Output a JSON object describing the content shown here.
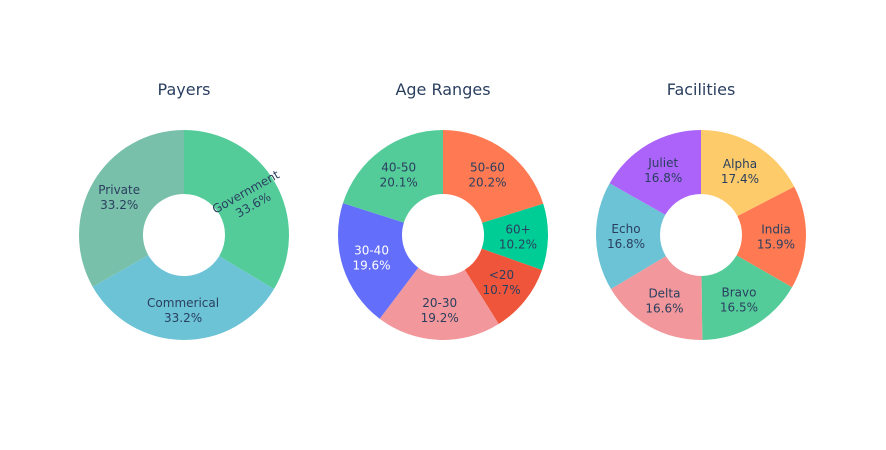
{
  "chart_data": [
    {
      "type": "pie",
      "title": "Payers",
      "hole": true,
      "slices": [
        {
          "label": "Government",
          "value": 33.6,
          "pct": "33.6%",
          "color": "#54cc9a",
          "text_color": "#2a3f5f",
          "label_style": "radial"
        },
        {
          "label": "Commerical",
          "value": 33.2,
          "pct": "33.2%",
          "color": "#6cc3d6",
          "text_color": "#2a3f5f",
          "label_style": "horizontal"
        },
        {
          "label": "Private",
          "value": 33.2,
          "pct": "33.2%",
          "color": "#79c0aa",
          "text_color": "#2a3f5f",
          "label_style": "horizontal"
        }
      ]
    },
    {
      "type": "pie",
      "title": "Age Ranges",
      "hole": true,
      "slices": [
        {
          "label": "50-60",
          "value": 20.2,
          "pct": "20.2%",
          "color": "#ff7a52",
          "text_color": "#2a3f5f",
          "label_style": "horizontal"
        },
        {
          "label": "60+",
          "value": 10.2,
          "pct": "10.2%",
          "color": "#00cc96",
          "text_color": "#2a3f5f",
          "label_style": "horizontal"
        },
        {
          "label": "<20",
          "value": 10.7,
          "pct": "10.7%",
          "color": "#ef553b",
          "text_color": "#2a3f5f",
          "label_style": "horizontal"
        },
        {
          "label": "20-30",
          "value": 19.2,
          "pct": "19.2%",
          "color": "#f2979b",
          "text_color": "#2a3f5f",
          "label_style": "horizontal"
        },
        {
          "label": "30-40",
          "value": 19.6,
          "pct": "19.6%",
          "color": "#636efa",
          "text_color": "#ffffff",
          "label_style": "horizontal"
        },
        {
          "label": "40-50",
          "value": 20.1,
          "pct": "20.1%",
          "color": "#54cc9a",
          "text_color": "#2a3f5f",
          "label_style": "horizontal"
        }
      ]
    },
    {
      "type": "pie",
      "title": "Facilities",
      "hole": true,
      "slices": [
        {
          "label": "Alpha",
          "value": 17.4,
          "pct": "17.4%",
          "color": "#fecb6a",
          "text_color": "#2a3f5f",
          "label_style": "horizontal"
        },
        {
          "label": "India",
          "value": 15.9,
          "pct": "15.9%",
          "color": "#ff7a52",
          "text_color": "#2a3f5f",
          "label_style": "horizontal"
        },
        {
          "label": "Bravo",
          "value": 16.5,
          "pct": "16.5%",
          "color": "#54cc9a",
          "text_color": "#2a3f5f",
          "label_style": "horizontal"
        },
        {
          "label": "Delta",
          "value": 16.6,
          "pct": "16.6%",
          "color": "#f2979b",
          "text_color": "#2a3f5f",
          "label_style": "horizontal"
        },
        {
          "label": "Echo",
          "value": 16.8,
          "pct": "16.8%",
          "color": "#6cc3d6",
          "text_color": "#2a3f5f",
          "label_style": "horizontal"
        },
        {
          "label": "Juliet",
          "value": 16.8,
          "pct": "16.8%",
          "color": "#ab63fa",
          "text_color": "#2a3f5f",
          "label_style": "horizontal"
        }
      ]
    }
  ]
}
